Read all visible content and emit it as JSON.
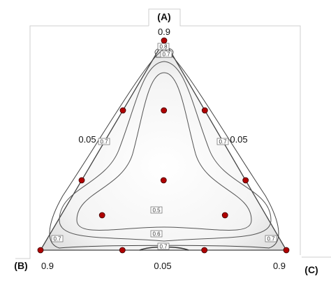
{
  "chart_data": {
    "type": "ternary-contour",
    "vertices": {
      "top": {
        "label": "(A)",
        "value": "0.9"
      },
      "left": {
        "label": "(B)",
        "value": "0.9"
      },
      "right": {
        "label": "(C)",
        "value": "0.9"
      }
    },
    "edge_labels": {
      "left": "0.05",
      "right": "0.05",
      "bottom": "0.05"
    },
    "contour_levels": [
      0.5,
      0.6,
      0.7,
      0.8
    ],
    "contour_labels": [
      "0.8",
      "0.7",
      "0.7",
      "0.7",
      "0.5",
      "0.6",
      "0.7",
      "0.7",
      "0.7"
    ],
    "design_points": [
      {
        "A": 0.9,
        "B": 0.05,
        "C": 0.05
      },
      {
        "A": 0.05,
        "B": 0.9,
        "C": 0.05
      },
      {
        "A": 0.05,
        "B": 0.05,
        "C": 0.9
      },
      {
        "A": 0.6167,
        "B": 0.3333,
        "C": 0.05
      },
      {
        "A": 0.6167,
        "B": 0.05,
        "C": 0.3333
      },
      {
        "A": 0.3333,
        "B": 0.6167,
        "C": 0.05
      },
      {
        "A": 0.3333,
        "B": 0.05,
        "C": 0.6167
      },
      {
        "A": 0.05,
        "B": 0.6167,
        "C": 0.3333
      },
      {
        "A": 0.05,
        "B": 0.3333,
        "C": 0.6167
      },
      {
        "A": 0.3333,
        "B": 0.3333,
        "C": 0.3333
      },
      {
        "A": 0.6167,
        "B": 0.1917,
        "C": 0.1917
      },
      {
        "A": 0.1917,
        "B": 0.6167,
        "C": 0.1917
      },
      {
        "A": 0.1917,
        "B": 0.1917,
        "C": 0.6167
      }
    ],
    "point_color": "#b00000",
    "grid": false
  }
}
